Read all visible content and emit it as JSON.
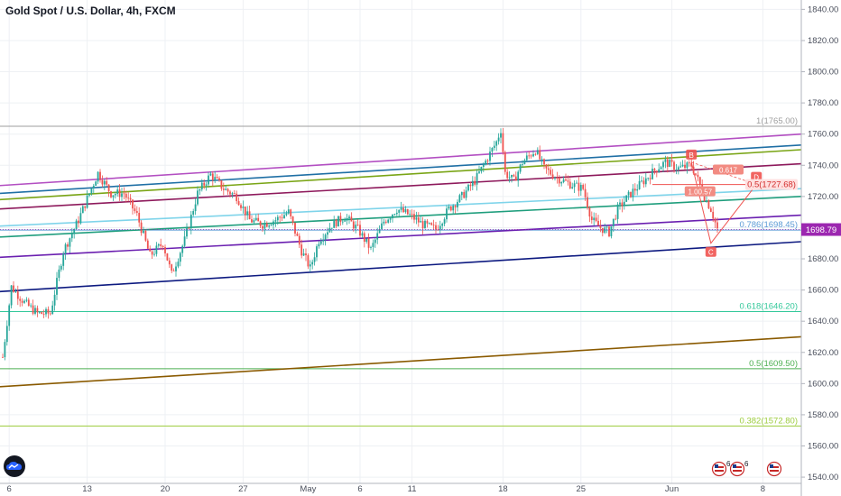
{
  "header": {
    "title": "Gold Spot / U.S. Dollar, 4h, FXCM"
  },
  "colors": {
    "bg": "#ffffff",
    "grid": "#eef0f4",
    "up": "#26a69a",
    "down": "#ef5350",
    "price_tag": "#9c27b0",
    "pattern": "#ef5350"
  },
  "chart_data": {
    "type": "candlestick",
    "title": "Gold Spot / U.S. Dollar, 4h, FXCM",
    "ylim": [
      1536,
      1846
    ],
    "x_ticks": [
      {
        "label": "6",
        "bar": 3
      },
      {
        "label": "13",
        "bar": 39
      },
      {
        "label": "20",
        "bar": 75
      },
      {
        "label": "27",
        "bar": 111
      },
      {
        "label": "May",
        "bar": 141
      },
      {
        "label": "6",
        "bar": 165
      },
      {
        "label": "11",
        "bar": 189
      },
      {
        "label": "18",
        "bar": 231
      },
      {
        "label": "25",
        "bar": 267
      },
      {
        "label": "Jun",
        "bar": 309
      },
      {
        "label": "8",
        "bar": 351
      }
    ],
    "y_ticks": [
      1540,
      1560,
      1580,
      1600,
      1620,
      1640,
      1660,
      1680,
      1700,
      1720,
      1740,
      1760,
      1780,
      1800,
      1820,
      1840
    ],
    "last_price": 1698.79,
    "last_price_label": "1698.79",
    "anchors": [
      [
        0,
        1617
      ],
      [
        4,
        1662
      ],
      [
        10,
        1652
      ],
      [
        16,
        1645
      ],
      [
        22,
        1645
      ],
      [
        28,
        1685
      ],
      [
        35,
        1705
      ],
      [
        40,
        1722
      ],
      [
        44,
        1735
      ],
      [
        50,
        1722
      ],
      [
        56,
        1722
      ],
      [
        62,
        1708
      ],
      [
        68,
        1682
      ],
      [
        74,
        1690
      ],
      [
        78,
        1670
      ],
      [
        84,
        1692
      ],
      [
        90,
        1722
      ],
      [
        96,
        1734
      ],
      [
        102,
        1725
      ],
      [
        108,
        1720
      ],
      [
        114,
        1705
      ],
      [
        120,
        1702
      ],
      [
        126,
        1705
      ],
      [
        132,
        1710
      ],
      [
        138,
        1685
      ],
      [
        142,
        1674
      ],
      [
        146,
        1692
      ],
      [
        152,
        1702
      ],
      [
        158,
        1707
      ],
      [
        164,
        1699
      ],
      [
        170,
        1686
      ],
      [
        176,
        1704
      ],
      [
        182,
        1712
      ],
      [
        188,
        1708
      ],
      [
        194,
        1702
      ],
      [
        200,
        1699
      ],
      [
        206,
        1712
      ],
      [
        212,
        1720
      ],
      [
        218,
        1730
      ],
      [
        224,
        1745
      ],
      [
        228,
        1755
      ],
      [
        230,
        1763
      ],
      [
        232,
        1735
      ],
      [
        236,
        1730
      ],
      [
        240,
        1742
      ],
      [
        246,
        1750
      ],
      [
        250,
        1738
      ],
      [
        256,
        1732
      ],
      [
        262,
        1728
      ],
      [
        268,
        1725
      ],
      [
        272,
        1705
      ],
      [
        276,
        1700
      ],
      [
        280,
        1697
      ],
      [
        284,
        1712
      ],
      [
        290,
        1722
      ],
      [
        296,
        1730
      ],
      [
        302,
        1738
      ],
      [
        306,
        1742
      ],
      [
        312,
        1738
      ],
      [
        318,
        1740
      ],
      [
        320,
        1734
      ],
      [
        324,
        1720
      ],
      [
        327,
        1712
      ],
      [
        330,
        1699
      ]
    ],
    "trendlines": [
      {
        "color": "#b34fc2",
        "x1": 0,
        "y1": 1727,
        "x2": 888,
        "y2": 1760
      },
      {
        "color": "#1f6fa5",
        "x1": 0,
        "y1": 1722,
        "x2": 888,
        "y2": 1753
      },
      {
        "color": "#7aa516",
        "x1": 0,
        "y1": 1718,
        "x2": 888,
        "y2": 1750
      },
      {
        "color": "#8e1a5c",
        "x1": 0,
        "y1": 1712,
        "x2": 888,
        "y2": 1741
      },
      {
        "color": "#7fd4ea",
        "x1": 0,
        "y1": 1701,
        "x2": 888,
        "y2": 1725
      },
      {
        "color": "#1f9e7d",
        "x1": 0,
        "y1": 1694,
        "x2": 888,
        "y2": 1720
      },
      {
        "color": "#6a1fb0",
        "x1": 0,
        "y1": 1681,
        "x2": 888,
        "y2": 1708
      },
      {
        "color": "#0d1a80",
        "x1": 0,
        "y1": 1659,
        "x2": 888,
        "y2": 1691
      },
      {
        "color": "#8a5a00",
        "x1": 0,
        "y1": 1598,
        "x2": 888,
        "y2": 1630
      }
    ],
    "fib_levels": [
      {
        "ratio": "1",
        "value": 1765.0,
        "label": "1(1765.00)",
        "color": "#9e9e9e"
      },
      {
        "ratio": "0.786",
        "value": 1698.45,
        "label": "0.786(1698.45)",
        "color": "#5b9bd5"
      },
      {
        "ratio": "0.618",
        "value": 1646.2,
        "label": "0.618(1646.20)",
        "color": "#33c89a"
      },
      {
        "ratio": "0.5",
        "value": 1609.5,
        "label": "0.5(1609.50)",
        "color": "#4caf50"
      },
      {
        "ratio": "0.382",
        "value": 1572.8,
        "label": "0.382(1572.80)",
        "color": "#9ccc3c"
      }
    ],
    "pattern": {
      "points": [
        {
          "label": "B",
          "bar": 318,
          "price": 1742
        },
        {
          "label": "C",
          "bar": 327,
          "price": 1690
        },
        {
          "label": "D",
          "bar": 348,
          "price": 1727.68
        }
      ],
      "level_line": {
        "price": 1727.68,
        "label": "0.5(1727.68)"
      },
      "ratio_labels": [
        {
          "text": "0.617",
          "bar": 335,
          "price": 1737
        },
        {
          "text": "1.00.57",
          "bar": 322,
          "price": 1723
        }
      ]
    },
    "bottom_badges": [
      {
        "name": "events-badge",
        "count": "6"
      },
      {
        "name": "us-flag-badge",
        "count": "6"
      },
      {
        "name": "us-flag-badge-2",
        "count": ""
      }
    ]
  }
}
